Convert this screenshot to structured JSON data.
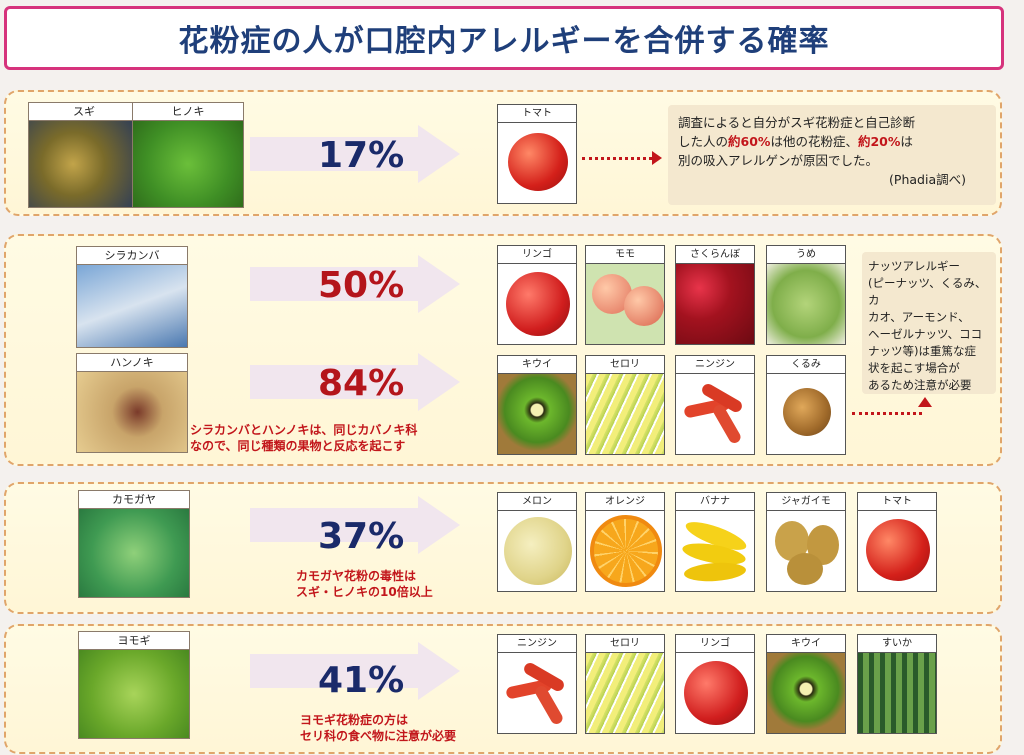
{
  "title": "花粉症の人が口腔内アレルギーを合併する確率",
  "rows": [
    {
      "pollens": [
        "スギ",
        "ヒノキ"
      ],
      "percent": "17%",
      "foods": [
        "トマト"
      ]
    },
    {
      "pollens": [
        "シラカンバ",
        "ハンノキ"
      ],
      "percents": [
        "50%",
        "84%"
      ],
      "foods_top": [
        "リンゴ",
        "モモ",
        "さくらんぼ",
        "うめ"
      ],
      "foods_bottom": [
        "キウイ",
        "セロリ",
        "ニンジン",
        "くるみ"
      ],
      "note": [
        "シラカンバとハンノキは、同じカバノキ科",
        "なので、同じ種類の果物と反応を起こす"
      ],
      "nut_note": [
        "ナッツアレルギー",
        "(ピーナッツ、くるみ、カ",
        "カオ、アーモンド、",
        "ヘーゼルナッツ、ココ",
        "ナッツ等)は重篤な症",
        "状を起こす場合が",
        "あるため注意が必要"
      ]
    },
    {
      "pollens": [
        "カモガヤ"
      ],
      "percent": "37%",
      "foods": [
        "メロン",
        "オレンジ",
        "バナナ",
        "ジャガイモ",
        "トマト"
      ],
      "note": [
        "カモガヤ花粉の毒性は",
        "スギ・ヒノキの10倍以上"
      ]
    },
    {
      "pollens": [
        "ヨモギ"
      ],
      "percent": "41%",
      "foods": [
        "ニンジン",
        "セロリ",
        "リンゴ",
        "キウイ",
        "すいか"
      ],
      "note": [
        "ヨモギ花粉症の方は",
        "セリ科の食べ物に注意が必要"
      ]
    }
  ],
  "survey": {
    "line1": "調査によると自分がスギ花粉症と自己診断",
    "line2a": "した人の",
    "line2b": "約60%",
    "line2c": "は他の花粉症、",
    "line2d": "約20%",
    "line2e": "は",
    "line3": "別の吸入アレルゲンが原因でした。",
    "source": "(Phadia調べ)"
  }
}
